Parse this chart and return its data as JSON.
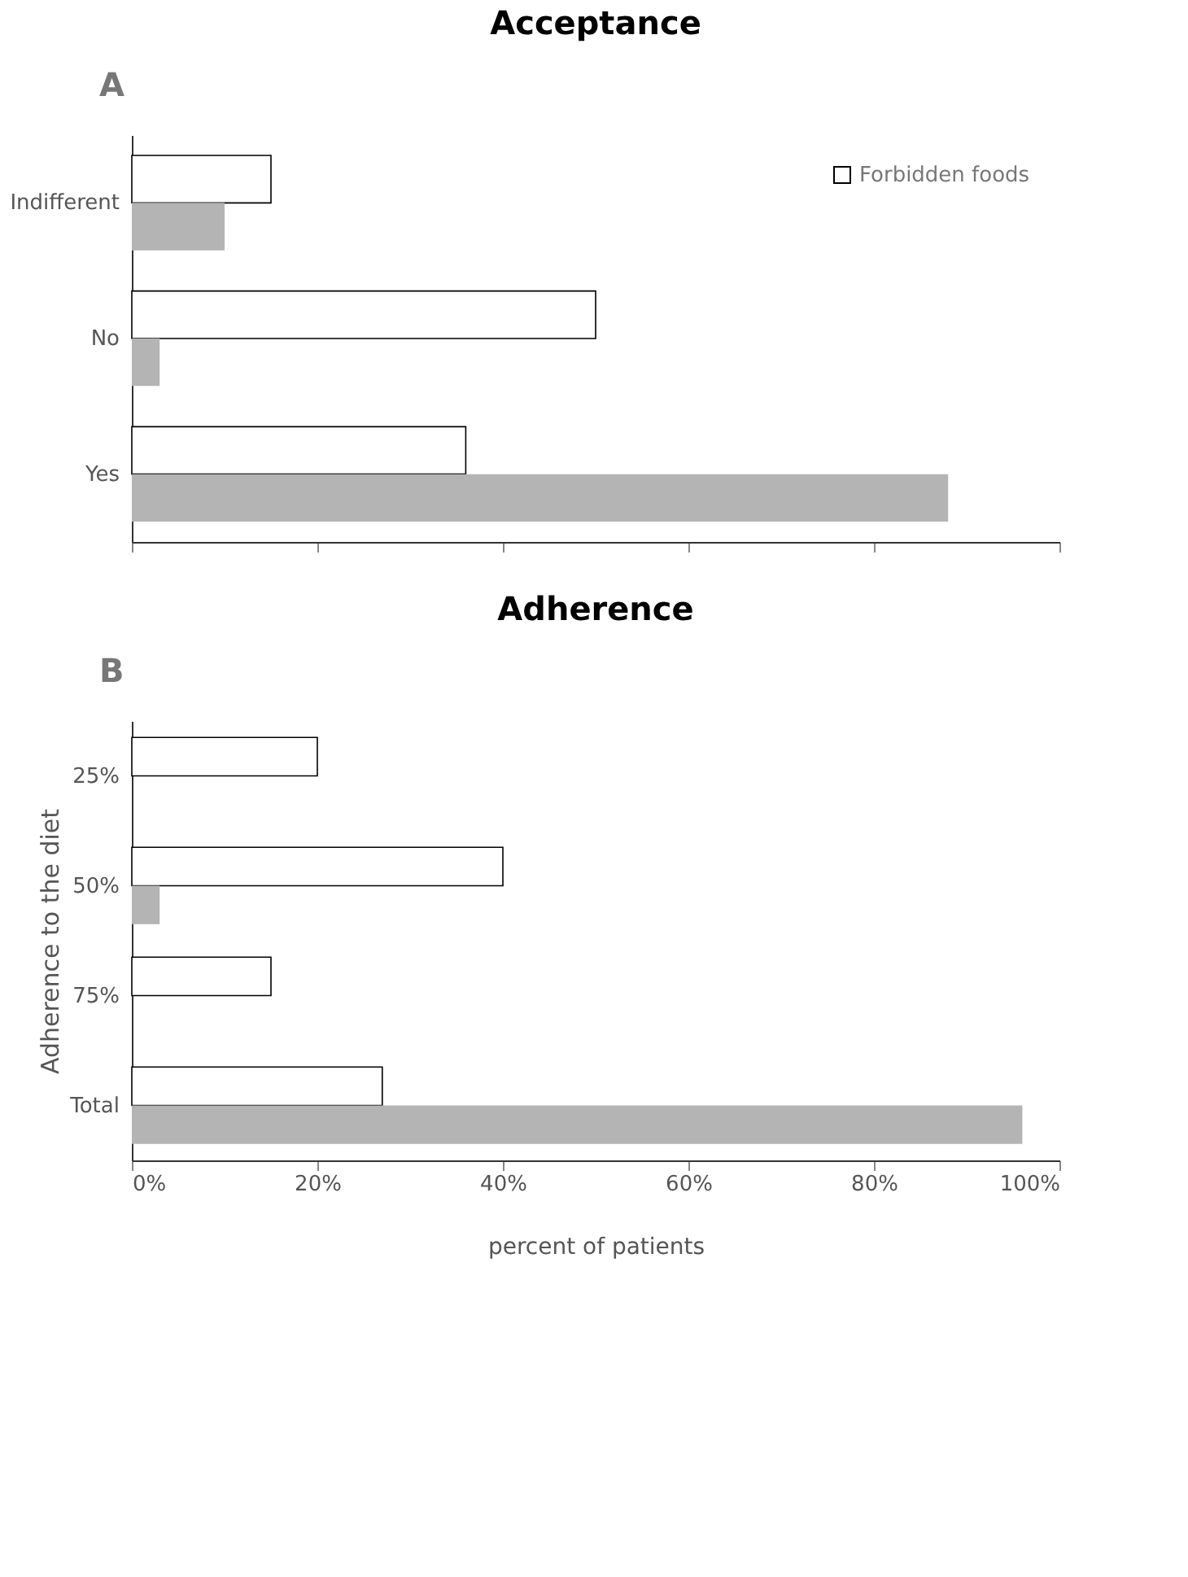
{
  "chart_data": [
    {
      "type": "bar",
      "orientation": "horizontal",
      "title": "Acceptance",
      "annotations": [
        "A"
      ],
      "categories": [
        "Indifferent",
        "No",
        "Yes"
      ],
      "series": [
        {
          "name": "Forbidden foods",
          "color": "#ffffff",
          "values": [
            15,
            50,
            36
          ]
        },
        {
          "color": "#b4b4b4",
          "values": [
            10,
            3,
            88
          ]
        }
      ],
      "xlim": [
        0,
        100
      ],
      "xticks": [
        0,
        20,
        40,
        60,
        80,
        100
      ],
      "tick_labels": "y",
      "grid": false,
      "legend": "top right"
    },
    {
      "type": "bar",
      "orientation": "horizontal",
      "title": "Adherence",
      "annotations": [
        "B"
      ],
      "xlabel": "percent of patients",
      "ylabel": "Adherence to the diet",
      "categories": [
        "25%",
        "50%",
        "75%",
        "Total"
      ],
      "series": [
        {
          "color": "#ffffff",
          "values": [
            20,
            40,
            15,
            27
          ]
        },
        {
          "color": "#b4b4b4",
          "values": [
            0,
            3,
            0,
            96
          ]
        }
      ],
      "xlim": [
        0,
        100
      ],
      "xticks": [
        {
          "value": 0,
          "label": "0%"
        },
        {
          "value": 20,
          "label": "20%"
        },
        {
          "value": 40,
          "label": "40%"
        },
        {
          "value": 60,
          "label": "60%"
        },
        {
          "value": 80,
          "label": "80%"
        },
        {
          "value": 100,
          "label": "100%"
        }
      ],
      "grid": false,
      "legend": false
    }
  ]
}
